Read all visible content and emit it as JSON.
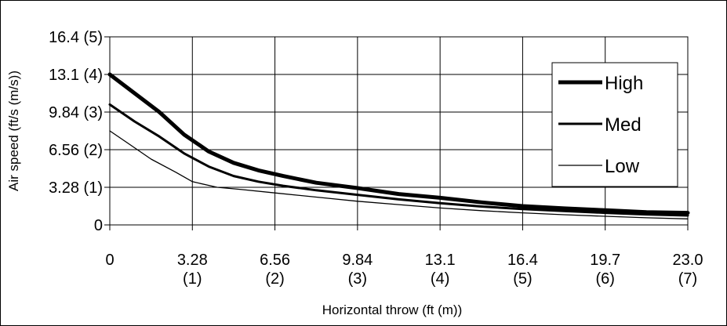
{
  "chart_data": {
    "type": "line",
    "xlabel": "Horizontal throw (ft (m))",
    "ylabel": "Air speed (ft/s (m/s))",
    "xlim": [
      0,
      7
    ],
    "ylim": [
      0,
      5
    ],
    "x_ticks": [
      {
        "v": 0,
        "top": "0",
        "bottom": ""
      },
      {
        "v": 1,
        "top": "3.28",
        "bottom": "(1)"
      },
      {
        "v": 2,
        "top": "6.56",
        "bottom": "(2)"
      },
      {
        "v": 3,
        "top": "9.84",
        "bottom": "(3)"
      },
      {
        "v": 4,
        "top": "13.1",
        "bottom": "(4)"
      },
      {
        "v": 5,
        "top": "16.4",
        "bottom": "(5)"
      },
      {
        "v": 6,
        "top": "19.7",
        "bottom": "(6)"
      },
      {
        "v": 7,
        "top": "23.0",
        "bottom": "(7)"
      }
    ],
    "y_ticks": [
      {
        "v": 0,
        "label": "0"
      },
      {
        "v": 1,
        "label": "3.28 (1)"
      },
      {
        "v": 2,
        "label": "6.56 (2)"
      },
      {
        "v": 3,
        "label": "9.84 (3)"
      },
      {
        "v": 4,
        "label": "13.1 (4)"
      },
      {
        "v": 5,
        "label": "16.4 (5)"
      }
    ],
    "grid": true,
    "legend_position": "top-right",
    "series": [
      {
        "name": "High",
        "points": [
          [
            0,
            4.0
          ],
          [
            0.3,
            3.5
          ],
          [
            0.6,
            3.0
          ],
          [
            0.9,
            2.4
          ],
          [
            1.2,
            1.95
          ],
          [
            1.5,
            1.65
          ],
          [
            1.8,
            1.45
          ],
          [
            2.1,
            1.3
          ],
          [
            2.5,
            1.12
          ],
          [
            3.0,
            0.98
          ],
          [
            3.5,
            0.82
          ],
          [
            4.0,
            0.72
          ],
          [
            4.5,
            0.6
          ],
          [
            5.0,
            0.5
          ],
          [
            5.5,
            0.44
          ],
          [
            6.0,
            0.39
          ],
          [
            6.5,
            0.34
          ],
          [
            7.0,
            0.32
          ]
        ]
      },
      {
        "name": "Med",
        "points": [
          [
            0,
            3.2
          ],
          [
            0.3,
            2.75
          ],
          [
            0.6,
            2.35
          ],
          [
            0.9,
            1.9
          ],
          [
            1.2,
            1.55
          ],
          [
            1.5,
            1.3
          ],
          [
            1.8,
            1.15
          ],
          [
            2.1,
            1.04
          ],
          [
            2.5,
            0.92
          ],
          [
            3.0,
            0.8
          ],
          [
            3.5,
            0.68
          ],
          [
            4.0,
            0.58
          ],
          [
            4.5,
            0.49
          ],
          [
            5.0,
            0.42
          ],
          [
            5.5,
            0.37
          ],
          [
            6.0,
            0.32
          ],
          [
            6.5,
            0.28
          ],
          [
            7.0,
            0.25
          ]
        ]
      },
      {
        "name": "Low",
        "points": [
          [
            0,
            2.5
          ],
          [
            0.2,
            2.2
          ],
          [
            0.5,
            1.75
          ],
          [
            0.8,
            1.4
          ],
          [
            1.0,
            1.15
          ],
          [
            1.3,
            1.0
          ],
          [
            1.6,
            0.94
          ],
          [
            2.0,
            0.85
          ],
          [
            2.5,
            0.74
          ],
          [
            3.0,
            0.63
          ],
          [
            3.5,
            0.54
          ],
          [
            4.0,
            0.45
          ],
          [
            4.5,
            0.38
          ],
          [
            5.0,
            0.32
          ],
          [
            5.5,
            0.27
          ],
          [
            6.0,
            0.23
          ],
          [
            6.5,
            0.19
          ],
          [
            7.0,
            0.16
          ]
        ]
      }
    ]
  }
}
